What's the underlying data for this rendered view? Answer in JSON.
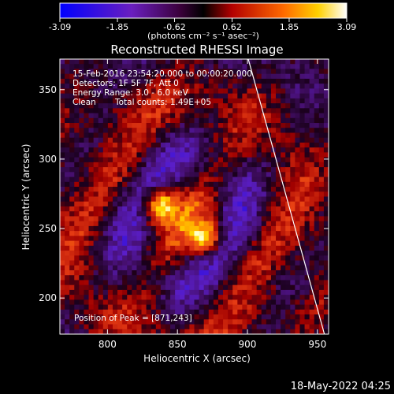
{
  "colorbar": {
    "ticks": [
      "-3.09",
      "-1.85",
      "-0.62",
      "0.62",
      "1.85",
      "3.09"
    ],
    "tick_values": [
      -3.09,
      -1.85,
      -0.62,
      0.62,
      1.85,
      3.09
    ],
    "range": [
      -3.09,
      3.09
    ],
    "units_text": "(photons cm⁻² s⁻¹ asec⁻²)",
    "colormap": "blue-purple-red-yellow-white"
  },
  "chart_data": {
    "type": "heatmap",
    "title": "Reconstructed RHESSI Image",
    "xlabel": "Heliocentric X (arcsec)",
    "ylabel": "Heliocentric Y (arcsec)",
    "xlim": [
      766,
      958
    ],
    "ylim": [
      174,
      372
    ],
    "xticks": [
      800,
      850,
      900,
      950
    ],
    "yticks": [
      200,
      250,
      300,
      350
    ],
    "annotations": [
      "15-Feb-2016 23:54:20.000 to 00:00:20.000",
      "Detectors: 1F 5F 7F, Att 0",
      "Energy Range: 3.0 - 6.0 keV",
      "Clean",
      "Total counts: 1.49E+05",
      "Position of Peak = [871,243]"
    ],
    "peak": [
      871,
      243
    ],
    "sources": [
      {
        "x": 840,
        "y": 265,
        "peak_value": 3.0
      },
      {
        "x": 868,
        "y": 245,
        "peak_value": 3.09
      }
    ],
    "limb_line": {
      "x_top": 900,
      "x_bottom": 955
    }
  },
  "footer": {
    "timestamp": "18-May-2022 04:25"
  }
}
